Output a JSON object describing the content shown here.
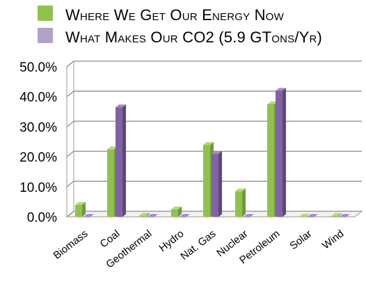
{
  "legend": [
    {
      "label": "Where We Get Our Energy Now",
      "color": "#92c050"
    },
    {
      "label": "What Makes Our CO2 (5.9 GTons/Yr)",
      "color": "#b3a2c7"
    }
  ],
  "chart_data": {
    "type": "bar",
    "categories": [
      "Biomass",
      "Coal",
      "Geothermal",
      "Hydro",
      "Nat. Gas",
      "Nuclear",
      "Petroleum",
      "Solar",
      "Wind"
    ],
    "series": [
      {
        "name": "Where We Get Our Energy Now",
        "values": [
          4.0,
          22.5,
          0.4,
          2.5,
          24.0,
          8.5,
          37.5,
          0.1,
          0.3
        ],
        "color": "#92c050"
      },
      {
        "name": "What Makes Our CO2 (5.9 GTons/Yr)",
        "values": [
          0.0,
          36.5,
          0.0,
          0.0,
          21.0,
          0.0,
          42.0,
          0.0,
          0.0
        ],
        "color": "#8064a2"
      }
    ],
    "yticks": [
      "0.0%",
      "10.0%",
      "20.0%",
      "30.0%",
      "40.0%",
      "50.0%"
    ],
    "ylim": [
      0,
      50
    ],
    "grid": true,
    "legend_position": "top-left",
    "title": "",
    "xlabel": "",
    "ylabel": ""
  }
}
